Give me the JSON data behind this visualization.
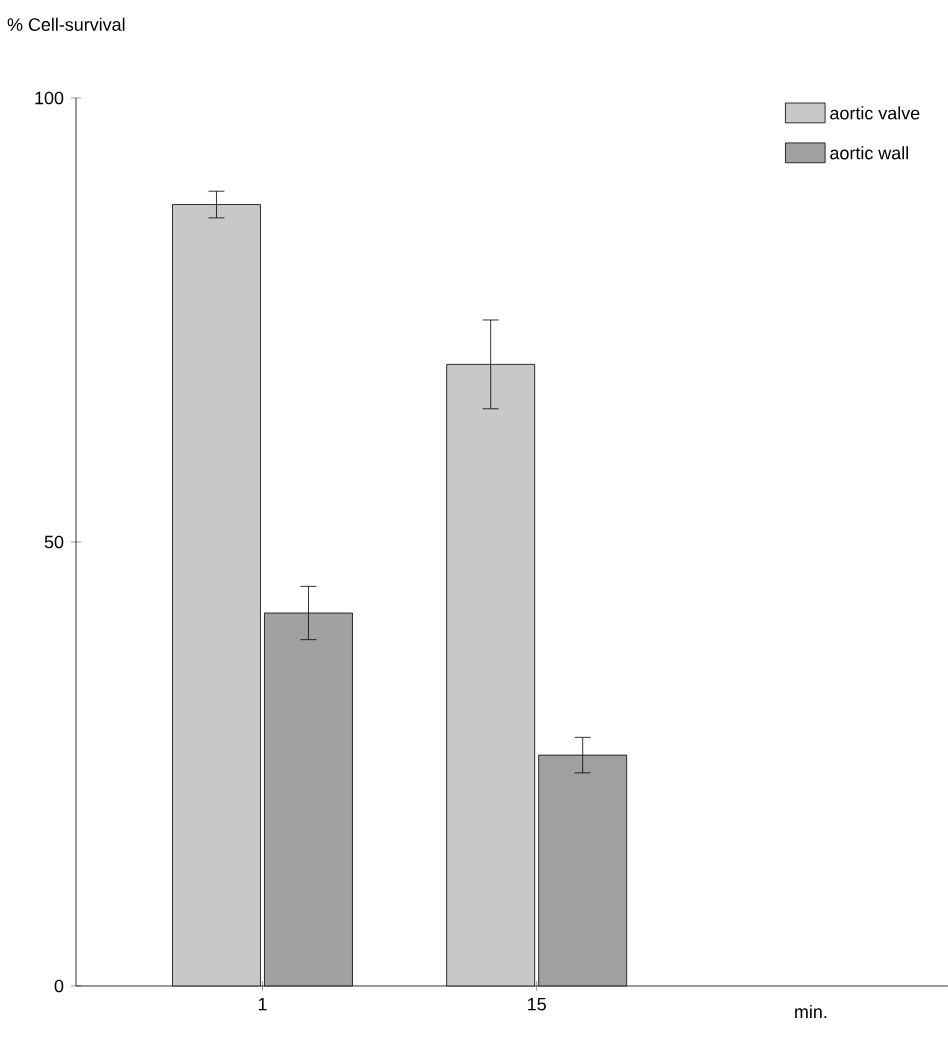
{
  "chart_data": {
    "type": "bar",
    "ylabel": "% Cell-survival",
    "annotations": [
      "min."
    ],
    "categories": [
      "1",
      "15"
    ],
    "series": [
      {
        "name": "aortic valve",
        "color": "#c8c8c8",
        "values": [
          88,
          70
        ],
        "errors": [
          1.5,
          5
        ]
      },
      {
        "name": "aortic wall",
        "color": "#a0a0a0",
        "values": [
          42,
          26
        ],
        "errors": [
          3,
          2
        ]
      }
    ],
    "ylim": [
      0,
      100
    ],
    "yticks": [
      0,
      50,
      100
    ],
    "legend": "top right"
  }
}
